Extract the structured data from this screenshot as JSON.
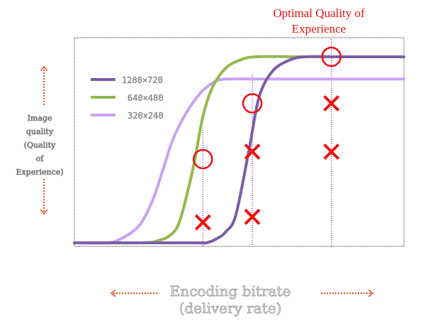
{
  "chart_data": {
    "type": "line",
    "title": "",
    "xlabel": "Encoding bitrate\n(delivery rate)",
    "ylabel": "Image\nquality\n(Quality\nof\nExperience)",
    "xlim": [
      0,
      100
    ],
    "ylim": [
      0,
      100
    ],
    "grid": false,
    "legend_position": "top-left",
    "colors": {
      "line_1280": "#7a5ea6",
      "line_640": "#94b84f",
      "line_320": "#c7a3f0",
      "annotation": "#ee1111",
      "arrow": "#e84a1a"
    },
    "series": [
      {
        "name": "1280×720",
        "x": [
          0,
          36,
          40,
          43,
          46,
          49,
          53,
          56,
          60,
          65,
          70,
          80,
          100
        ],
        "y": [
          0,
          0,
          0,
          2,
          6,
          15,
          50,
          78,
          92,
          98,
          100,
          100,
          100
        ]
      },
      {
        "name": "640×480",
        "x": [
          0,
          20,
          25,
          29,
          32,
          36,
          39,
          42,
          46,
          50,
          55,
          70,
          100
        ],
        "y": [
          0,
          0,
          1,
          4,
          12,
          40,
          68,
          84,
          94,
          98,
          100,
          100,
          100
        ]
      },
      {
        "name": "320×240",
        "x": [
          0,
          10,
          15,
          20,
          24,
          27,
          30,
          34,
          38,
          42,
          46,
          60,
          100
        ],
        "y": [
          0,
          0,
          3,
          10,
          24,
          40,
          56,
          70,
          80,
          86,
          88,
          88,
          88
        ]
      }
    ],
    "vlines_x": [
      39,
      54,
      78
    ],
    "optimal_markers": [
      {
        "x": 39,
        "y": 45,
        "symbol": "circle"
      },
      {
        "x": 54,
        "y": 75,
        "symbol": "circle"
      },
      {
        "x": 78,
        "y": 100,
        "symbol": "circle"
      }
    ],
    "non_optimal_markers": [
      {
        "x": 39,
        "y": 11,
        "symbol": "x"
      },
      {
        "x": 54,
        "y": 14,
        "symbol": "x"
      },
      {
        "x": 54,
        "y": 49,
        "symbol": "x"
      },
      {
        "x": 78,
        "y": 49,
        "symbol": "x"
      },
      {
        "x": 78,
        "y": 75,
        "symbol": "x"
      }
    ],
    "annotations": [
      "Optimal  Quality of\nExperience"
    ]
  }
}
